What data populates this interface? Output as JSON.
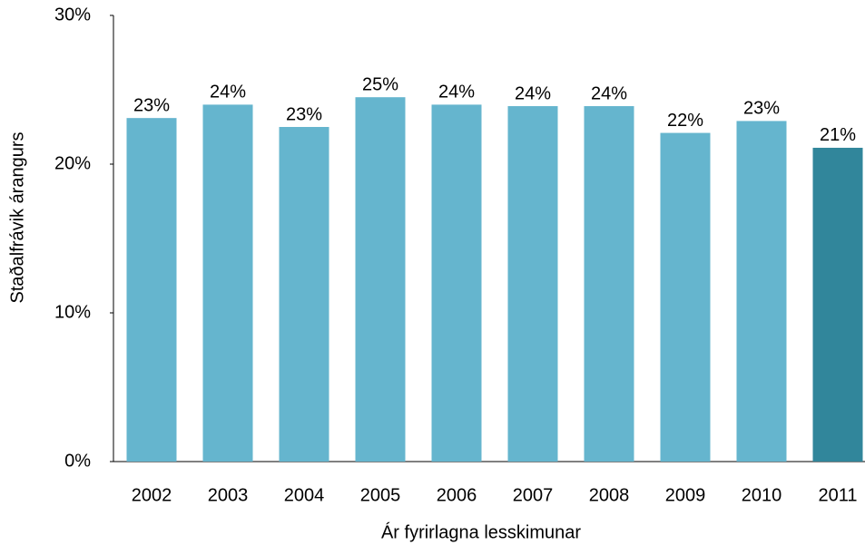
{
  "chart_data": {
    "type": "bar",
    "x_label": "Ár fyrirlagna lesskimunar",
    "y_label": "Staðalfrávik árangurs",
    "categories": [
      "2002",
      "2003",
      "2004",
      "2005",
      "2006",
      "2007",
      "2008",
      "2009",
      "2010",
      "2011"
    ],
    "values": [
      23.1,
      24.0,
      22.5,
      24.5,
      24.0,
      23.9,
      23.9,
      22.1,
      22.9,
      21.1
    ],
    "value_labels": [
      "23%",
      "24%",
      "23%",
      "25%",
      "24%",
      "24%",
      "24%",
      "22%",
      "23%",
      "21%"
    ],
    "colors": [
      "#65b5ce",
      "#65b5ce",
      "#65b5ce",
      "#65b5ce",
      "#65b5ce",
      "#65b5ce",
      "#65b5ce",
      "#65b5ce",
      "#65b5ce",
      "#31869b"
    ],
    "ylim": [
      0,
      30
    ],
    "yticks": [
      {
        "value": 0,
        "label": "0%"
      },
      {
        "value": 10,
        "label": "10%"
      },
      {
        "value": 20,
        "label": "20%"
      },
      {
        "value": 30,
        "label": "30%"
      }
    ],
    "grid": false
  }
}
